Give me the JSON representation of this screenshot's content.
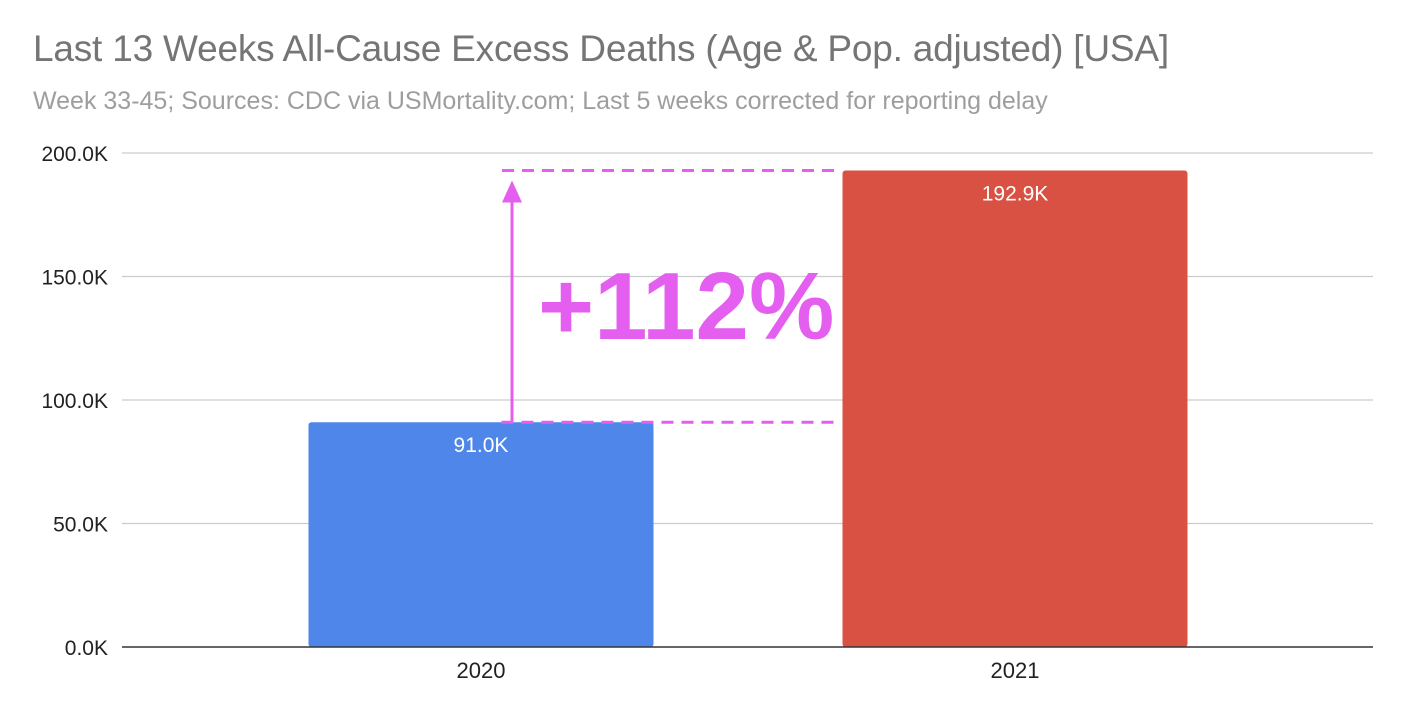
{
  "chart_data": {
    "type": "bar",
    "title": "Last 13 Weeks All-Cause Excess Deaths (Age & Pop. adjusted) [USA]",
    "subtitle": "Week 33-45; Sources: CDC via USMortality.com; Last 5 weeks corrected for reporting delay",
    "xlabel": "",
    "ylabel": "",
    "categories": [
      "2020",
      "2021"
    ],
    "values": [
      91.0,
      192.9
    ],
    "value_labels": [
      "91.0K",
      "192.9K"
    ],
    "bar_colors": [
      "#4f86ea",
      "#d95143"
    ],
    "ylim": [
      0,
      200
    ],
    "yticks": [
      0,
      50,
      100,
      150,
      200
    ],
    "ytick_labels": [
      "0.0K",
      "50.0K",
      "100.0K",
      "150.0K",
      "200.0K"
    ],
    "grid": true,
    "annotation": {
      "text": "+112%",
      "from_value": 91.0,
      "to_value": 192.9,
      "color": "#e45ff0"
    }
  }
}
